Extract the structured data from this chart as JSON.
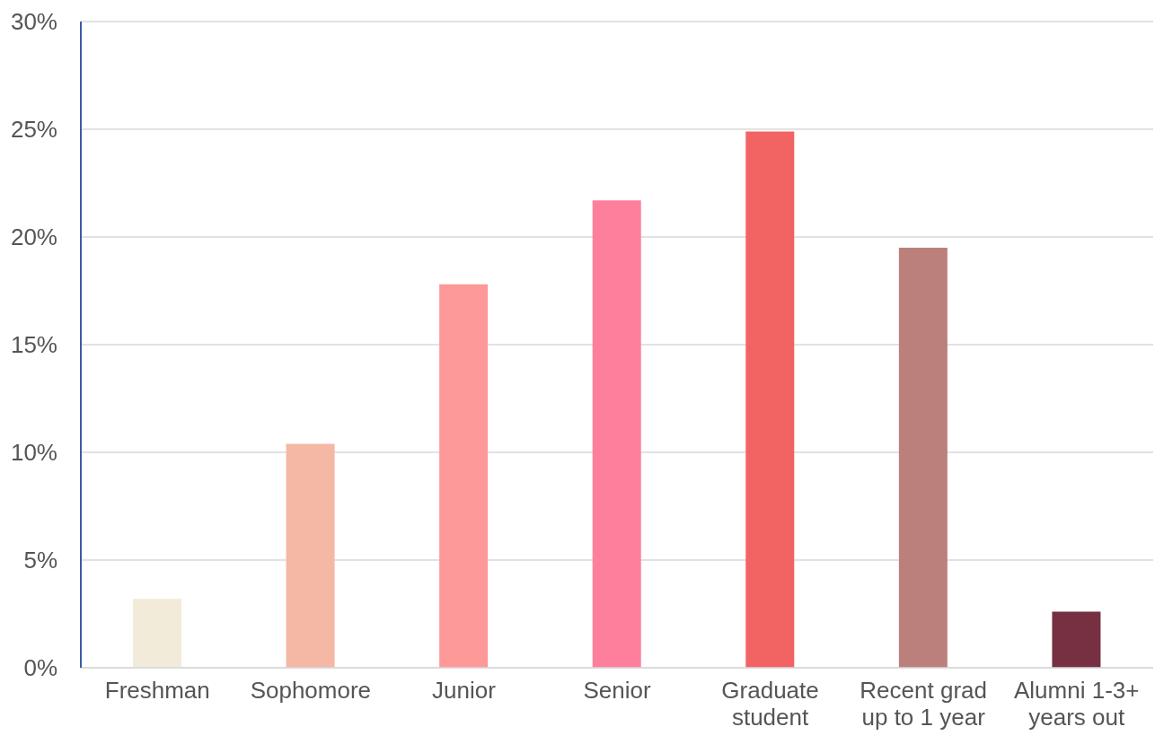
{
  "chart_data": {
    "type": "bar",
    "categories": [
      "Freshman",
      "Sophomore",
      "Junior",
      "Senior",
      "Graduate student",
      "Recent grad up to 1 year",
      "Alumni 1-3+ years out"
    ],
    "values": [
      3.2,
      10.4,
      17.8,
      21.7,
      24.9,
      19.5,
      2.6
    ],
    "colors": [
      "#f2ebd9",
      "#f4b8a5",
      "#fd9999",
      "#fe7f9c",
      "#f26464",
      "#bc807c",
      "#772f42"
    ],
    "ylim": [
      0,
      30
    ],
    "yticks": [
      {
        "value": 0,
        "label": "0%"
      },
      {
        "value": 5,
        "label": "5%"
      },
      {
        "value": 10,
        "label": "10%"
      },
      {
        "value": 15,
        "label": "15%"
      },
      {
        "value": 20,
        "label": "20%"
      },
      {
        "value": 25,
        "label": "25%"
      },
      {
        "value": 30,
        "label": "30%"
      }
    ],
    "grid": "y"
  }
}
